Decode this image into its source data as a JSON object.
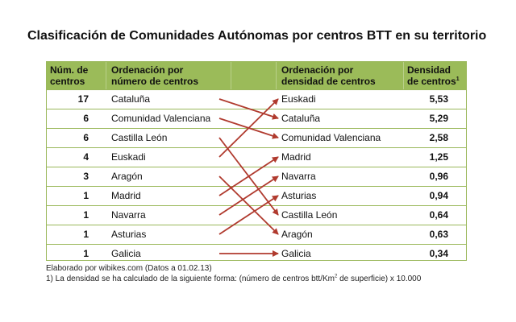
{
  "title": "Clasificación de Comunidades Autónomas por centros BTT en su territorio",
  "headers": {
    "col1_line1": "Núm. de",
    "col1_line2": "centros",
    "col2_line1": "Ordenación por",
    "col2_line2": "número de centros",
    "col3_line1": "Ordenación por",
    "col3_line2": "densidad de centros",
    "col4_line1": "Densidad",
    "col4_line2": "de centros",
    "col4_sup": "1"
  },
  "rows": [
    {
      "num": "17",
      "by_count": "Cataluña",
      "by_density": "Euskadi",
      "density": "5,53"
    },
    {
      "num": "6",
      "by_count": "Comunidad Valenciana",
      "by_density": "Cataluña",
      "density": "5,29"
    },
    {
      "num": "6",
      "by_count": "Castilla León",
      "by_density": "Comunidad Valenciana",
      "density": "2,58"
    },
    {
      "num": "4",
      "by_count": "Euskadi",
      "by_density": "Madrid",
      "density": "1,25"
    },
    {
      "num": "3",
      "by_count": "Aragón",
      "by_density": "Navarra",
      "density": "0,96"
    },
    {
      "num": "1",
      "by_count": "Madrid",
      "by_density": "Asturias",
      "density": "0,94"
    },
    {
      "num": "1",
      "by_count": "Navarra",
      "by_density": "Castilla León",
      "density": "0,64"
    },
    {
      "num": "1",
      "by_count": "Asturias",
      "by_density": "Aragón",
      "density": "0,63"
    },
    {
      "num": "1",
      "by_count": "Galicia",
      "by_density": "Galicia",
      "density": "0,34"
    }
  ],
  "arrow_map": [
    1,
    2,
    6,
    0,
    7,
    3,
    4,
    5,
    8
  ],
  "arrow_color": "#b03a2e",
  "header_color": "#9bbb59",
  "notes": {
    "line1": "Elaborado por wibikes.com (Datos a 01.02.13)",
    "line2_pre": "1) La densidad se ha calculado de la siguiente forma: (número de centros btt/Km",
    "line2_sup": "2",
    "line2_post": " de superficie) x 10.000"
  }
}
